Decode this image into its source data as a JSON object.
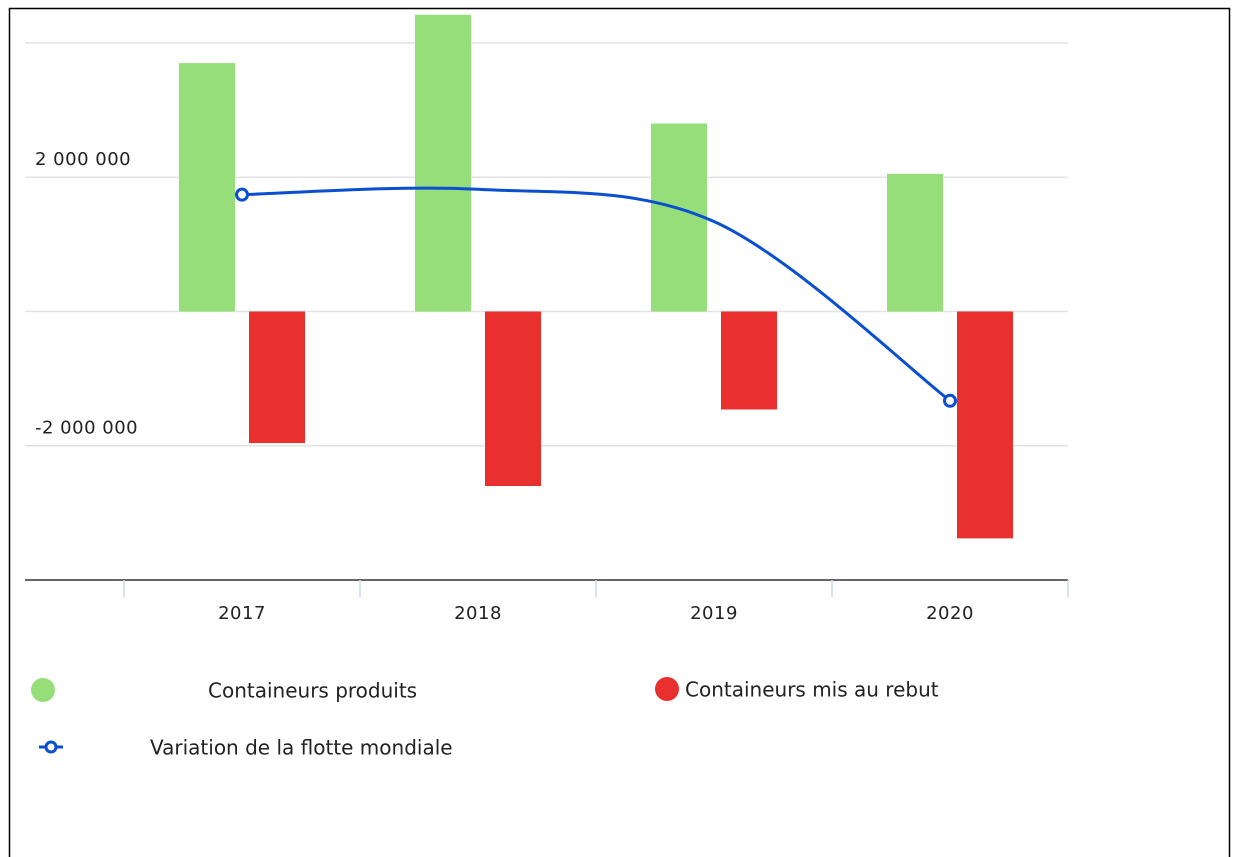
{
  "chart_data": {
    "type": "bar",
    "categories": [
      "2017",
      "2018",
      "2019",
      "2020"
    ],
    "series": [
      {
        "name": "Containeurs produits",
        "color": "#95de7a",
        "values": [
          3700000,
          4420000,
          2800000,
          2050000
        ]
      },
      {
        "name": "Containeurs mis au rebut",
        "color": "#e8302f",
        "values": [
          -1960000,
          -2600000,
          -1460000,
          -3380000
        ]
      },
      {
        "name": "Variation de la flotte mondiale",
        "type": "line",
        "color": "#0a4fd0",
        "values": [
          1740000,
          1820000,
          1340000,
          -1330000
        ]
      }
    ],
    "ylim": [
      -4000000,
      4500000
    ],
    "yticks": [
      {
        "value": 4000000,
        "label": null
      },
      {
        "value": 2000000,
        "label": "2 000 000"
      },
      {
        "value": 0,
        "label": null
      },
      {
        "value": -2000000,
        "label": "-2 000 000"
      }
    ],
    "grid": true
  }
}
